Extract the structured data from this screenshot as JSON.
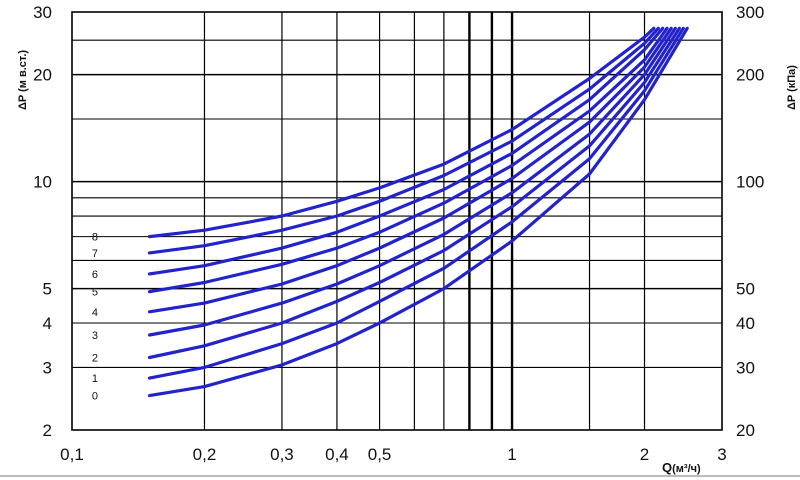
{
  "chart_data": {
    "type": "line",
    "x_scale": "log",
    "y_scale": "log",
    "xlim": [
      0.1,
      3
    ],
    "ylim": [
      2,
      30
    ],
    "grid": true,
    "series_color": "#2323cc",
    "x_ticks": [
      {
        "value": 0.1,
        "label": "0,1"
      },
      {
        "value": 0.2,
        "label": "0,2"
      },
      {
        "value": 0.3,
        "label": "0,3"
      },
      {
        "value": 0.4,
        "label": "0,4"
      },
      {
        "value": 0.5,
        "label": "0,5"
      },
      {
        "value": 1,
        "label": "1"
      },
      {
        "value": 2,
        "label": "2"
      },
      {
        "value": 3,
        "label": "3"
      }
    ],
    "y_ticks_left": [
      {
        "value": 2,
        "label": "2"
      },
      {
        "value": 3,
        "label": "3"
      },
      {
        "value": 4,
        "label": "4"
      },
      {
        "value": 5,
        "label": "5"
      },
      {
        "value": 10,
        "label": "10"
      },
      {
        "value": 20,
        "label": "20"
      },
      {
        "value": 30,
        "label": "30"
      }
    ],
    "y_ticks_right": [
      {
        "value": 2,
        "label": "20"
      },
      {
        "value": 3,
        "label": "30"
      },
      {
        "value": 4,
        "label": "40"
      },
      {
        "value": 5,
        "label": "50"
      },
      {
        "value": 10,
        "label": "100"
      },
      {
        "value": 20,
        "label": "200"
      },
      {
        "value": 30,
        "label": "300"
      }
    ],
    "ylabel_left": "ΔP (м в.ст.)",
    "ylabel_right": "ΔP (кПа)",
    "xlabel_main": "Q",
    "xlabel_unit": "(м³/ч)",
    "series": [
      {
        "name": "0",
        "x": [
          0.15,
          0.2,
          0.3,
          0.4,
          0.5,
          0.7,
          1.0,
          1.5,
          2.0,
          2.5
        ],
        "y": [
          2.5,
          2.65,
          3.05,
          3.5,
          4.0,
          5.0,
          6.8,
          10.5,
          17.0,
          27.0
        ]
      },
      {
        "name": "1",
        "x": [
          0.15,
          0.2,
          0.3,
          0.4,
          0.5,
          0.7,
          1.0,
          1.5,
          2.0,
          2.45
        ],
        "y": [
          2.8,
          3.0,
          3.5,
          4.0,
          4.6,
          5.7,
          7.7,
          11.6,
          18.0,
          27.0
        ]
      },
      {
        "name": "2",
        "x": [
          0.15,
          0.2,
          0.3,
          0.4,
          0.5,
          0.7,
          1.0,
          1.5,
          2.0,
          2.4
        ],
        "y": [
          3.2,
          3.45,
          4.0,
          4.6,
          5.2,
          6.4,
          8.5,
          12.6,
          19.0,
          27.0
        ]
      },
      {
        "name": "3",
        "x": [
          0.15,
          0.2,
          0.3,
          0.4,
          0.5,
          0.7,
          1.0,
          1.5,
          2.0,
          2.35
        ],
        "y": [
          3.7,
          3.95,
          4.55,
          5.15,
          5.8,
          7.1,
          9.3,
          13.6,
          20.0,
          27.0
        ]
      },
      {
        "name": "4",
        "x": [
          0.15,
          0.2,
          0.3,
          0.4,
          0.5,
          0.7,
          1.0,
          1.5,
          2.0,
          2.3
        ],
        "y": [
          4.3,
          4.55,
          5.15,
          5.8,
          6.5,
          7.9,
          10.2,
          14.7,
          21.0,
          27.0
        ]
      },
      {
        "name": "5",
        "x": [
          0.15,
          0.2,
          0.3,
          0.4,
          0.5,
          0.7,
          1.0,
          1.5,
          2.0,
          2.25
        ],
        "y": [
          4.9,
          5.2,
          5.85,
          6.5,
          7.2,
          8.7,
          11.1,
          15.8,
          22.0,
          27.0
        ]
      },
      {
        "name": "6",
        "x": [
          0.15,
          0.2,
          0.3,
          0.4,
          0.5,
          0.7,
          1.0,
          1.5,
          2.0,
          2.2
        ],
        "y": [
          5.5,
          5.8,
          6.5,
          7.2,
          8.0,
          9.5,
          12.0,
          17.0,
          23.5,
          27.0
        ]
      },
      {
        "name": "7",
        "x": [
          0.15,
          0.2,
          0.3,
          0.4,
          0.5,
          0.7,
          1.0,
          1.5,
          2.0,
          2.15
        ],
        "y": [
          6.3,
          6.6,
          7.3,
          8.0,
          8.8,
          10.4,
          13.0,
          18.2,
          24.5,
          27.0
        ]
      },
      {
        "name": "8",
        "x": [
          0.15,
          0.2,
          0.3,
          0.4,
          0.5,
          0.7,
          1.0,
          1.5,
          2.0,
          2.1
        ],
        "y": [
          7.0,
          7.3,
          8.0,
          8.8,
          9.6,
          11.2,
          14.0,
          19.5,
          25.5,
          27.0
        ]
      }
    ]
  }
}
